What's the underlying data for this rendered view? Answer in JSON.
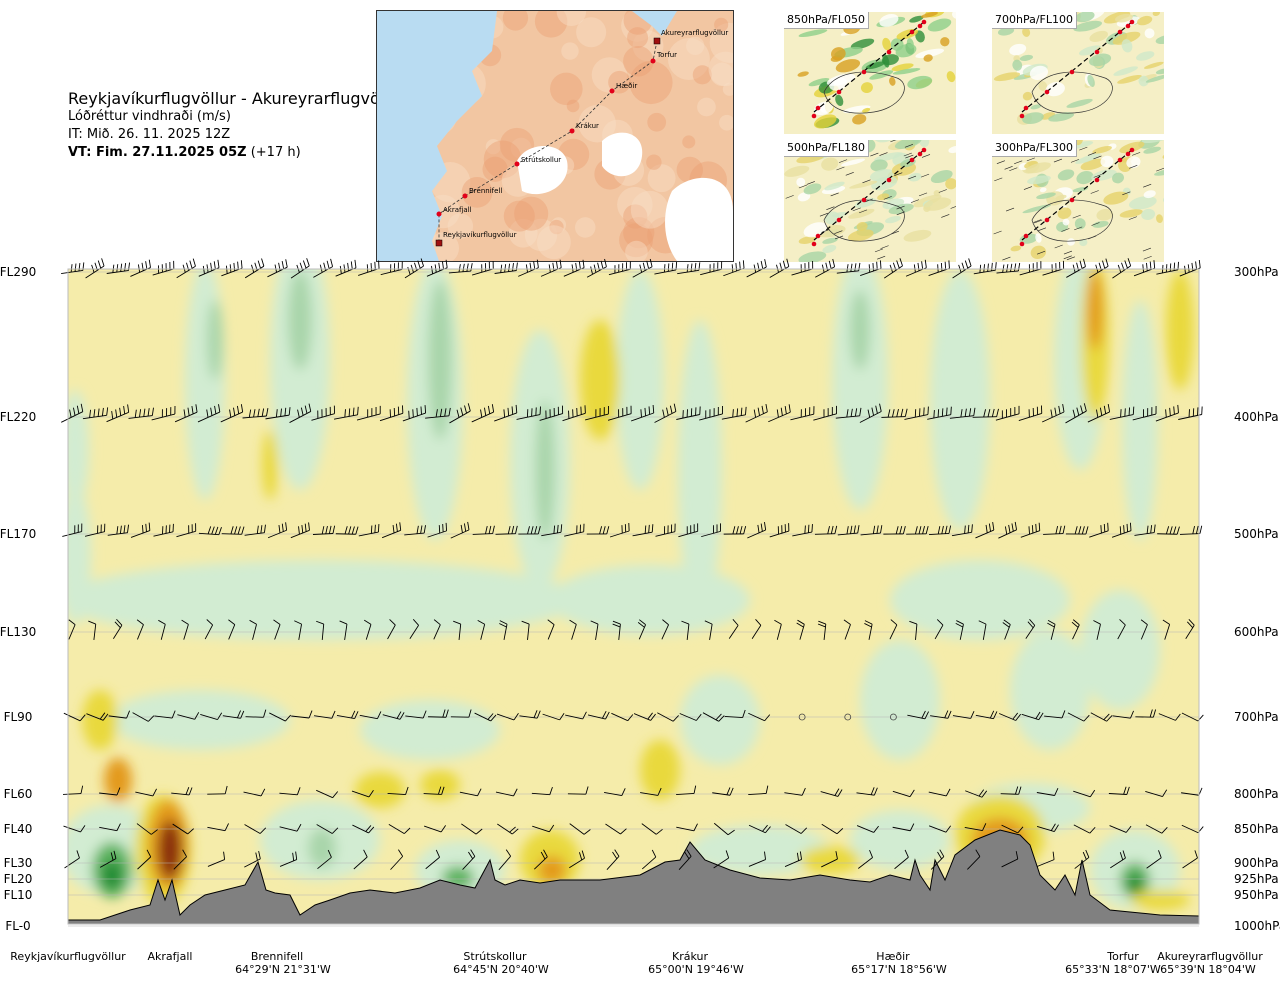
{
  "header": {
    "route": "Reykjavíkurflugvöllur - Akureyrarflugvöllur",
    "quantity": "Lóðréttur vindhraði (m/s)",
    "issue_time": "IT: Mið. 26. 11. 2025 12Z",
    "valid_time_bold": "VT: Fim. 27.11.2025 05Z",
    "valid_time_rest": "(+17 h)"
  },
  "route_map": {
    "waypoints": [
      "Akureyrarflugvöllur",
      "Torfur",
      "Hæðir",
      "Krákur",
      "Strútskollur",
      "Brennifell",
      "Akrafjall",
      "Reykjavíkurflugvöllur"
    ],
    "colors": {
      "sea": "#b9dcf2",
      "land": "#f2c6a2",
      "ice": "#ffffff",
      "route": "#e2001a"
    }
  },
  "level_maps": [
    {
      "label": "850hPa/FL050"
    },
    {
      "label": "700hPa/FL100"
    },
    {
      "label": "500hPa/FL180"
    },
    {
      "label": "300hPa/FL300"
    }
  ],
  "chart_data": {
    "type": "heatmap",
    "title": "Lóðréttur vindhraði (m/s)",
    "flight_levels": [
      "FL290",
      "FL220",
      "FL170",
      "FL130",
      "FL90",
      "FL60",
      "FL40",
      "FL30",
      "FL20",
      "FL10",
      "FL-0"
    ],
    "pressure_levels": [
      "300hPa",
      "400hPa",
      "500hPa",
      "600hPa",
      "700hPa",
      "800hPa",
      "850hPa",
      "900hPa",
      "925hPa",
      "950hPa",
      "1000hPa"
    ],
    "pressure_hpa": [
      300,
      400,
      500,
      600,
      700,
      800,
      850,
      900,
      925,
      950,
      1000
    ],
    "locations": [
      {
        "name": "Reykjavíkurflugvöllur",
        "coord": ""
      },
      {
        "name": "Akrafjall",
        "coord": ""
      },
      {
        "name": "Brennifell",
        "coord": "64°29'N 21°31'W"
      },
      {
        "name": "Strútskollur",
        "coord": "64°45'N 20°40'W"
      },
      {
        "name": "Krákur",
        "coord": "65°00'N 19°46'W"
      },
      {
        "name": "Hæðir",
        "coord": "65°17'N 18°56'W"
      },
      {
        "name": "Torfur",
        "coord": "65°33'N 18°07'W"
      },
      {
        "name": "Akureyrarflugvöllur",
        "coord": "65°39'N 18°04'W"
      }
    ],
    "location_fraction": [
      0.0,
      0.09,
      0.19,
      0.38,
      0.55,
      0.73,
      0.93,
      1.0
    ],
    "colors": {
      "up_weak": "#f5ecaa",
      "up_mod": "#e9d93c",
      "up_strong": "#e39a1c",
      "up_vstrong": "#8a2d0c",
      "down_weak": "#d2ecd2",
      "down_mod": "#a9d5aa",
      "down_strong": "#5cb35f",
      "down_vstrong": "#1d8a33",
      "neutral": "#f4fbf2",
      "terrain": "#808080"
    }
  }
}
